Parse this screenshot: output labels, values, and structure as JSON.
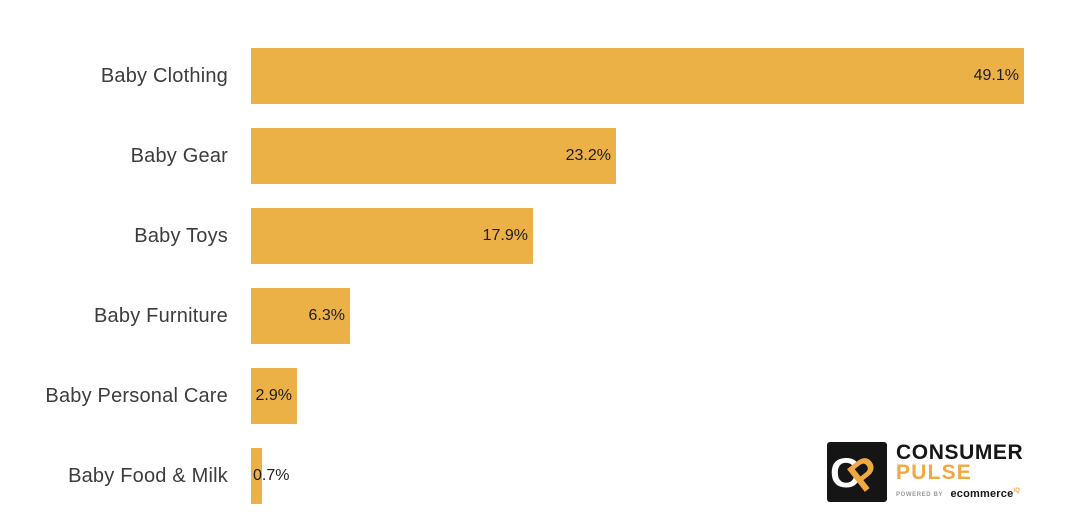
{
  "chart_data": {
    "type": "bar",
    "orientation": "horizontal",
    "title": "",
    "xlabel": "",
    "ylabel": "",
    "categories": [
      "Baby Clothing",
      "Baby Gear",
      "Baby Toys",
      "Baby Furniture",
      "Baby Personal Care",
      "Baby Food & Milk"
    ],
    "values": [
      49.1,
      23.2,
      17.9,
      6.3,
      2.9,
      0.7
    ],
    "value_labels": [
      "49.1%",
      "23.2%",
      "17.9%",
      "6.3%",
      "2.9%",
      "0.7%"
    ],
    "xlim": [
      0,
      49.1
    ],
    "grid": false,
    "legend": false,
    "bar_color": "#EBB146",
    "category_label_color": "#3c3c3c",
    "value_label_color": "#1d1d1d"
  },
  "branding": {
    "monogram_letters": [
      "C",
      "P"
    ],
    "name_line1": "CONSUMER",
    "name_line2": "PULSE",
    "powered_by": "POWERED BY",
    "powered_brand": "ecommerce",
    "powered_brand_sup": "IQ",
    "colors": {
      "black": "#151515",
      "orange": "#F0A941",
      "white": "#ffffff"
    }
  }
}
